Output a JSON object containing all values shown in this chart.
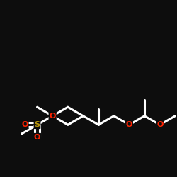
{
  "background_color": "#0d0d0d",
  "bond_color": "#ffffff",
  "atom_colors": {
    "O": "#ff2200",
    "S": "#b8960c",
    "C": "#ffffff"
  },
  "bond_width": 2.2,
  "figsize": [
    2.5,
    2.5
  ],
  "dpi": 100
}
